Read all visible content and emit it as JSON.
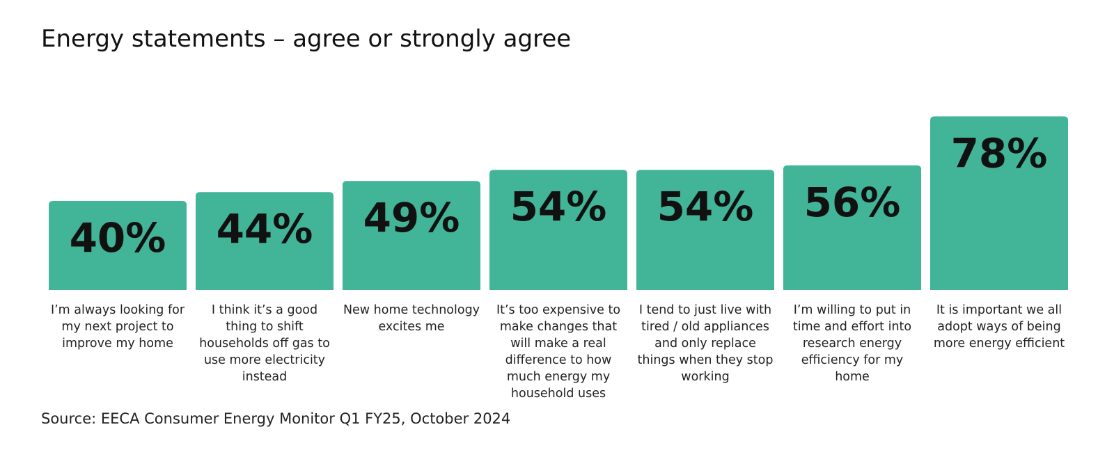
{
  "chart_data": {
    "type": "bar",
    "title": "Energy statements – agree or strongly agree",
    "categories": [
      "I’m always looking for my next project to improve my home",
      "I think it’s a good thing to shift households off gas to use more electricity instead",
      "New home technology excites me",
      "It’s too expensive to make changes that will make a real difference to how much energy my household uses",
      "I tend to just live with tired / old appliances and only replace things when they stop working",
      "I’m willing to put in time and effort into research energy efficiency for my home",
      "It is important we all adopt ways of being more energy efficient"
    ],
    "values": [
      40,
      44,
      49,
      54,
      54,
      56,
      78
    ],
    "data_labels": [
      "40%",
      "44%",
      "49%",
      "54%",
      "54%",
      "56%",
      "78%"
    ],
    "unit": "%",
    "bar_color": "#42b497",
    "grid": false,
    "legend": "none"
  },
  "source": "Source: EECA Consumer Energy Monitor Q1 FY25, October 2024"
}
